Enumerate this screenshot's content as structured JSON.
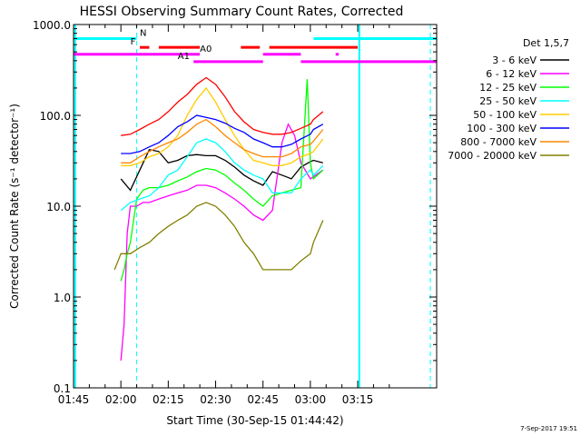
{
  "chart_data": {
    "type": "line",
    "title": "HESSI Observing Summary Count Rates, Corrected",
    "xlabel": "Start Time (30-Sep-15 01:44:42)",
    "ylabel": "Corrected Count Rate (s⁻¹ detector⁻¹)",
    "y_scale": "log",
    "ylim": [
      0.1,
      1000
    ],
    "xlim_minutes": [
      0,
      115
    ],
    "x_ticks": [
      {
        "label": "01:45",
        "minute": 0
      },
      {
        "label": "02:00",
        "minute": 15
      },
      {
        "label": "02:15",
        "minute": 30
      },
      {
        "label": "02:30",
        "minute": 45
      },
      {
        "label": "02:45",
        "minute": 60
      },
      {
        "label": "03:00",
        "minute": 75
      },
      {
        "label": "03:15",
        "minute": 90
      }
    ],
    "y_ticks": [
      {
        "label": "0.1",
        "value": 0.1
      },
      {
        "label": "1.0",
        "value": 1
      },
      {
        "label": "10.0",
        "value": 10
      },
      {
        "label": "100.0",
        "value": 100
      },
      {
        "label": "1000.0",
        "value": 1000
      }
    ],
    "legend_title": "Det 1,5,7",
    "legend_position": "right",
    "series": [
      {
        "name": "3 - 6 keV",
        "color": "#000000",
        "minutes": [
          13,
          15,
          18,
          21,
          24,
          27,
          30,
          33,
          36,
          39,
          42,
          45,
          48,
          51,
          54,
          57,
          60,
          63,
          66,
          69,
          72,
          75,
          76,
          79
        ],
        "values": [
          null,
          20,
          15,
          25,
          42,
          40,
          30,
          32,
          36,
          37,
          36,
          36,
          32,
          27,
          22,
          19,
          17,
          24,
          22,
          20,
          27,
          31,
          32,
          30
        ]
      },
      {
        "name": "6 - 12 keV",
        "color": "#ff00ff",
        "minutes": [
          15,
          16,
          17,
          18,
          20,
          22,
          24,
          27,
          30,
          33,
          36,
          39,
          42,
          45,
          48,
          51,
          54,
          57,
          60,
          63,
          66,
          68,
          70,
          72,
          75,
          79
        ],
        "values": [
          0.2,
          0.5,
          5,
          10,
          10,
          11,
          11,
          12,
          13,
          14,
          15,
          17,
          17,
          16,
          14,
          12,
          10,
          8,
          7,
          9,
          50,
          80,
          60,
          30,
          20,
          25
        ]
      },
      {
        "name": "12 - 25 keV",
        "color": "#00ff00",
        "minutes": [
          15,
          16,
          17,
          18,
          20,
          22,
          24,
          27,
          30,
          33,
          36,
          39,
          42,
          45,
          48,
          51,
          54,
          57,
          60,
          63,
          66,
          69,
          72,
          74,
          75,
          76,
          79
        ],
        "values": [
          1.5,
          2,
          3,
          4,
          12,
          15,
          16,
          16,
          17,
          19,
          21,
          24,
          26,
          25,
          22,
          18,
          15,
          12,
          10,
          13,
          14,
          15,
          16,
          250,
          30,
          20,
          25
        ]
      },
      {
        "name": "25 - 50 keV",
        "color": "#00ffff",
        "minutes": [
          13,
          15,
          18,
          21,
          24,
          27,
          30,
          33,
          36,
          39,
          42,
          45,
          48,
          51,
          54,
          57,
          60,
          63,
          66,
          69,
          72,
          75,
          76,
          79
        ],
        "values": [
          null,
          9,
          11,
          12,
          13,
          16,
          22,
          25,
          35,
          50,
          55,
          50,
          40,
          30,
          25,
          22,
          20,
          14,
          14,
          14,
          20,
          25,
          22,
          28
        ]
      },
      {
        "name": "50 - 100 keV",
        "color": "#ffcc00",
        "minutes": [
          13,
          15,
          18,
          21,
          24,
          27,
          30,
          33,
          36,
          39,
          42,
          45,
          48,
          51,
          54,
          57,
          60,
          63,
          66,
          69,
          72,
          75,
          76,
          79
        ],
        "values": [
          null,
          28,
          28,
          30,
          35,
          38,
          45,
          60,
          100,
          150,
          200,
          140,
          90,
          60,
          42,
          32,
          30,
          28,
          28,
          30,
          35,
          38,
          40,
          55
        ]
      },
      {
        "name": "100 - 300 keV",
        "color": "#0000ff",
        "minutes": [
          13,
          15,
          18,
          21,
          24,
          27,
          30,
          33,
          36,
          39,
          42,
          45,
          48,
          51,
          54,
          57,
          60,
          63,
          66,
          69,
          72,
          75,
          76,
          79
        ],
        "values": [
          null,
          38,
          38,
          40,
          45,
          50,
          60,
          75,
          85,
          100,
          95,
          90,
          82,
          72,
          65,
          55,
          50,
          45,
          45,
          48,
          55,
          62,
          70,
          80
        ]
      },
      {
        "name": "800 - 7000 keV",
        "color": "#ff8800",
        "minutes": [
          13,
          15,
          18,
          21,
          24,
          27,
          30,
          33,
          36,
          39,
          42,
          45,
          48,
          51,
          54,
          57,
          60,
          63,
          66,
          69,
          72,
          75,
          76,
          79
        ],
        "values": [
          null,
          30,
          30,
          35,
          40,
          45,
          50,
          55,
          65,
          80,
          90,
          75,
          60,
          50,
          42,
          38,
          35,
          35,
          35,
          38,
          45,
          48,
          52,
          70
        ]
      },
      {
        "name": "7000 - 20000 keV",
        "color": "#808000",
        "minutes": [
          13,
          15,
          18,
          21,
          24,
          27,
          30,
          33,
          36,
          39,
          42,
          45,
          48,
          51,
          54,
          57,
          60,
          63,
          66,
          69,
          72,
          75,
          76,
          79
        ],
        "values": [
          2,
          3,
          3,
          3.5,
          4,
          5,
          6,
          7,
          8,
          10,
          11,
          10,
          8,
          6,
          4,
          3,
          2,
          2,
          2,
          2,
          2.5,
          3,
          4,
          7
        ]
      },
      {
        "name": "",
        "color": "#ff0000",
        "minutes": [
          13,
          15,
          18,
          21,
          24,
          27,
          30,
          33,
          36,
          39,
          42,
          45,
          48,
          51,
          54,
          57,
          60,
          63,
          66,
          69,
          72,
          75,
          76,
          79
        ],
        "values": [
          null,
          60,
          62,
          70,
          80,
          90,
          110,
          140,
          170,
          220,
          260,
          220,
          160,
          110,
          85,
          70,
          65,
          62,
          62,
          65,
          72,
          80,
          90,
          110
        ]
      }
    ],
    "state_bars": [
      {
        "label": "N",
        "color": "#00ffff",
        "y_level": 700,
        "segments": [
          [
            0,
            20
          ],
          [
            76,
            115
          ]
        ]
      },
      {
        "label": "F",
        "color": "#ff0000",
        "y_level": 560,
        "segments": [
          [
            21,
            24
          ],
          [
            27,
            40
          ],
          [
            53,
            59
          ],
          [
            62,
            90
          ]
        ]
      },
      {
        "label": "A0",
        "color": "#ff00ff",
        "y_level": 470,
        "segments": [
          [
            0,
            40
          ],
          [
            60,
            72
          ],
          [
            83,
            84
          ]
        ]
      },
      {
        "label": "A1",
        "color": "#ff00ff",
        "y_level": 390,
        "segments": [
          [
            38,
            60
          ],
          [
            72,
            115
          ]
        ]
      }
    ],
    "vertical_markers": [
      {
        "minute": 0.5,
        "color": "#00ffff",
        "style": "solid"
      },
      {
        "minute": 20,
        "color": "#00ffff",
        "style": "dashed"
      },
      {
        "minute": 90.5,
        "color": "#00ffff",
        "style": "solid"
      },
      {
        "minute": 113,
        "color": "#00ffff",
        "style": "dashed"
      }
    ]
  },
  "footer": {
    "date_stamp": "7-Sep-2017 19:51"
  }
}
